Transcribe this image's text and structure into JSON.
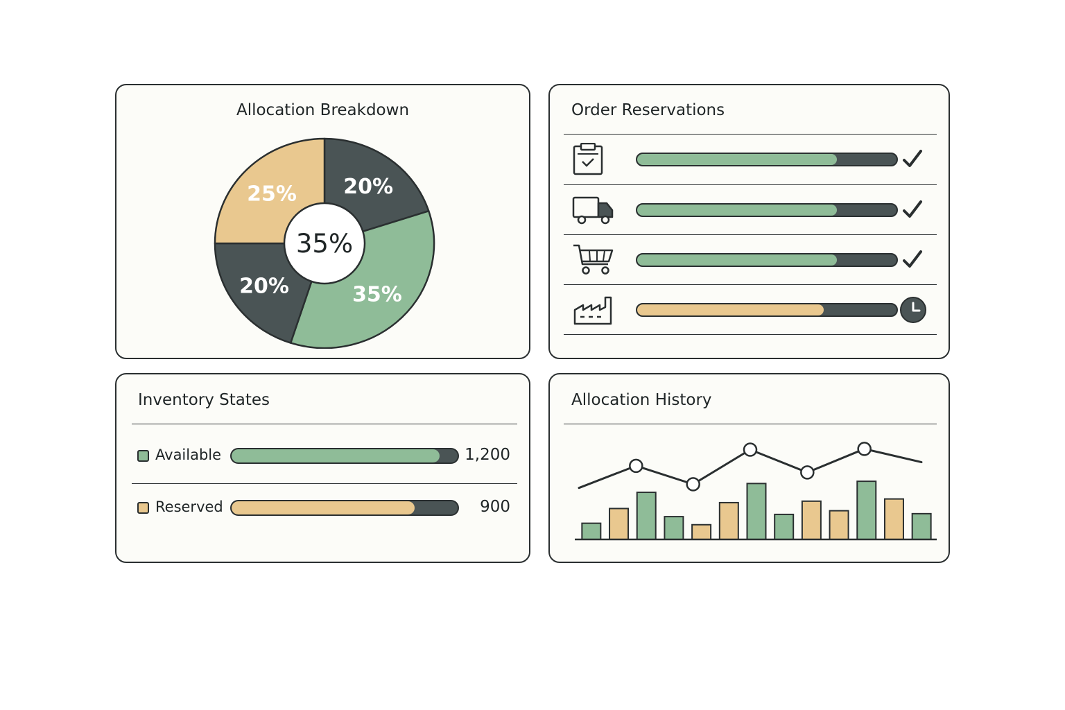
{
  "colors": {
    "green": "#8fbc98",
    "tan": "#e9c88f",
    "dark": "#4a5455",
    "outline": "#2a2f30"
  },
  "breakdown": {
    "title": "Allocation Breakdown",
    "center_label": "35%",
    "chart_data": {
      "type": "pie",
      "title": "Allocation Breakdown",
      "slices": [
        {
          "label": "20%",
          "value": 20,
          "color": "#4a5455"
        },
        {
          "label": "35%",
          "value": 35,
          "color": "#8fbc98"
        },
        {
          "label": "20%",
          "value": 20,
          "color": "#4a5455"
        },
        {
          "label": "25%",
          "value": 25,
          "color": "#e9c88f"
        }
      ]
    }
  },
  "reservations": {
    "title": "Order Reservations",
    "rows": [
      {
        "icon": "clipboard-check-icon",
        "progress": 0.77,
        "color": "#8fbc98",
        "status": "checkmark-icon"
      },
      {
        "icon": "delivery-truck-icon",
        "progress": 0.77,
        "color": "#8fbc98",
        "status": "checkmark-icon"
      },
      {
        "icon": "shopping-cart-icon",
        "progress": 0.77,
        "color": "#8fbc98",
        "status": "checkmark-icon"
      },
      {
        "icon": "factory-icon",
        "progress": 0.72,
        "color": "#e9c88f",
        "status": "clock-icon"
      }
    ]
  },
  "inventory": {
    "title": "Inventory States",
    "rows": [
      {
        "label": "Available",
        "value": "1,200",
        "progress": 0.92,
        "color": "#8fbc98"
      },
      {
        "label": "Reserved",
        "value": "900",
        "progress": 0.81,
        "color": "#e9c88f"
      }
    ]
  },
  "history": {
    "title": "Allocation History",
    "chart_data": {
      "type": "bar",
      "title": "Allocation History",
      "bars": [
        {
          "value": 22,
          "color": "#8fbc98"
        },
        {
          "value": 42,
          "color": "#e9c88f"
        },
        {
          "value": 64,
          "color": "#8fbc98"
        },
        {
          "value": 31,
          "color": "#8fbc98"
        },
        {
          "value": 20,
          "color": "#e9c88f"
        },
        {
          "value": 50,
          "color": "#e9c88f"
        },
        {
          "value": 76,
          "color": "#8fbc98"
        },
        {
          "value": 34,
          "color": "#8fbc98"
        },
        {
          "value": 52,
          "color": "#e9c88f"
        },
        {
          "value": 39,
          "color": "#e9c88f"
        },
        {
          "value": 79,
          "color": "#8fbc98"
        },
        {
          "value": 55,
          "color": "#e9c88f"
        },
        {
          "value": 35,
          "color": "#8fbc98"
        }
      ],
      "line": {
        "values": [
          70,
          100,
          75,
          122,
          91,
          123,
          105
        ],
        "markers": [
          false,
          true,
          true,
          true,
          true,
          true,
          false
        ]
      },
      "ylim": [
        0,
        130
      ]
    }
  }
}
